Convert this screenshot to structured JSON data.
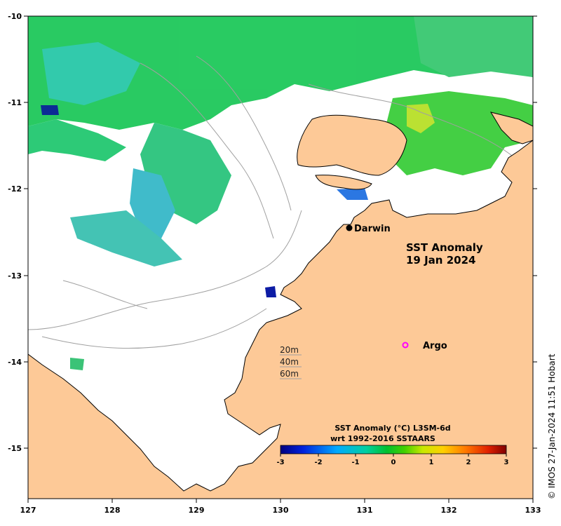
{
  "map": {
    "title_line1": "SST Anomaly",
    "title_line2": "19 Jan 2024",
    "lon_ticks": [
      "127",
      "128",
      "129",
      "130",
      "131",
      "132",
      "133"
    ],
    "lat_ticks": [
      "-10",
      "-11",
      "-12",
      "-13",
      "-14",
      "-15"
    ],
    "lon_range": [
      127,
      133
    ],
    "lat_range": [
      -15.6,
      -10
    ],
    "places": [
      {
        "name": "Darwin",
        "lon": 130.84,
        "lat": -12.46,
        "marker": "filled-circle"
      }
    ],
    "argo": {
      "label": "Argo",
      "lon": 131.5,
      "lat": -13.8,
      "marker_color": "#ff00ff"
    },
    "depth_legend": [
      "20m",
      "40m",
      "60m"
    ]
  },
  "colorbar": {
    "title_line1": "SST Anomaly (°C) L3SM-6d",
    "title_line2": "wrt 1992-2016 SSTAARS",
    "ticks": [
      "-3",
      "-2",
      "-1",
      "0",
      "1",
      "2",
      "3"
    ],
    "range": [
      -3,
      3
    ],
    "colors": [
      "#00007f",
      "#0022dd",
      "#00aaff",
      "#00d0a0",
      "#00c030",
      "#44d000",
      "#c8e800",
      "#ffd000",
      "#ff7800",
      "#e02000",
      "#800000"
    ]
  },
  "credit": "© IMOS 27-Jan-2024 11:51 Hobart",
  "colors": {
    "land": "#fdc997",
    "ocean": "#ffffff",
    "coast": "#000000",
    "isobath": "#a0a0a0"
  }
}
